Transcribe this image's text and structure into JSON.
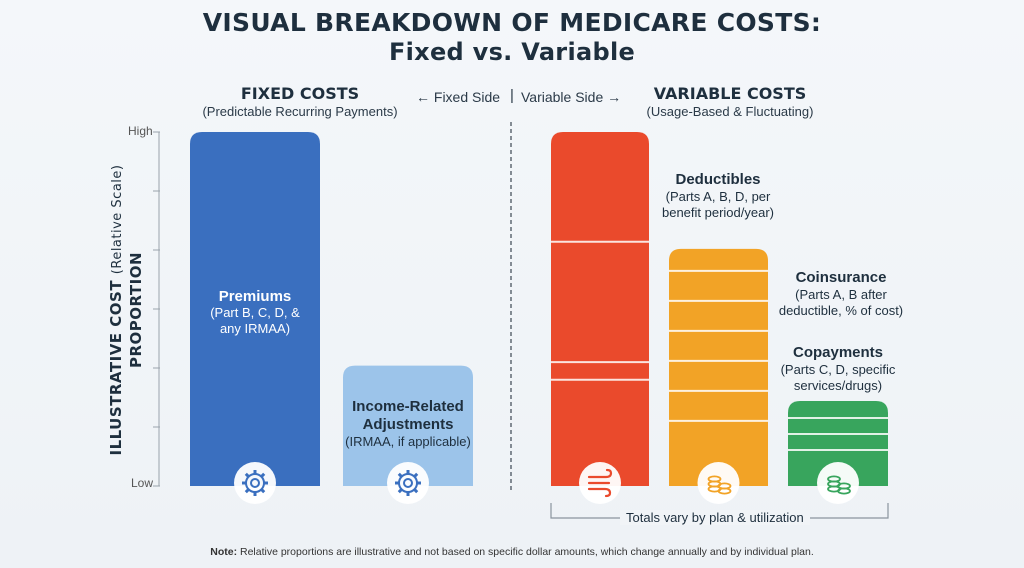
{
  "title_line1": "VISUAL BREAKDOWN OF MEDICARE COSTS:",
  "title_line2": "Fixed vs. Variable",
  "fixed": {
    "heading": "FIXED COSTS",
    "subheading": "(Predictable Recurring Payments)",
    "side_label": "← Fixed Side"
  },
  "variable": {
    "heading": "VARIABLE COSTS",
    "subheading": "(Usage-Based & Fluctuating)",
    "side_label": "Variable Side →"
  },
  "y_axis": {
    "label_line1": "ILLUSTRATIVE COST",
    "label_scale": "(Relative Scale)",
    "label_line2": "PROPORTION",
    "tick_high": "High",
    "tick_low": "Low"
  },
  "chart_data": {
    "type": "bar",
    "title": "VISUAL BREAKDOWN OF MEDICARE COSTS: Fixed vs. Variable",
    "ylabel": "ILLUSTRATIVE COST PROPORTION (Relative Scale)",
    "ylim": [
      0,
      1
    ],
    "grid": false,
    "categories": [
      "Premiums",
      "Income-Related Adjustments",
      "Deductibles",
      "Coinsurance",
      "Copayments"
    ],
    "values": [
      1.0,
      0.34,
      1.0,
      0.67,
      0.24
    ],
    "bars": [
      {
        "name": "Premiums",
        "desc_lines": [
          "(Part B, C, D, &",
          "any IRMAA)"
        ],
        "value": 1.0,
        "group": "fixed",
        "color": "#3a6fbf",
        "icon": "gear-icon"
      },
      {
        "name": "Income-Related Adjustments",
        "name_lines": [
          "Income-Related",
          "Adjustments"
        ],
        "desc_lines": [
          "(IRMAA, if applicable)"
        ],
        "value": 0.34,
        "group": "fixed",
        "color": "#9cc4ea",
        "icon": "gear-icon"
      },
      {
        "name": "Deductibles",
        "desc_lines": [
          "(Parts A, B, D, per",
          "benefit period/year)"
        ],
        "value": 1.0,
        "group": "variable",
        "color": "#ea4a2c",
        "icon": "wind-icon"
      },
      {
        "name": "Coinsurance",
        "desc_lines": [
          "(Parts A, B after",
          "deductible, % of cost)"
        ],
        "value": 0.67,
        "group": "variable",
        "color": "#f2a326",
        "icon": "coins-icon"
      },
      {
        "name": "Copayments",
        "desc_lines": [
          "(Parts C, D, specific",
          "services/drugs)"
        ],
        "value": 0.24,
        "group": "variable",
        "color": "#38a55d",
        "icon": "coins-icon"
      }
    ]
  },
  "totals_note": "Totals vary by plan & utilization",
  "footnote_bold": "Note:",
  "footnote_text": " Relative proportions are illustrative and not based on specific dollar amounts, which change annually and by individual plan.",
  "colors": {
    "premiums": "#3a6fbf",
    "adjustments": "#9cc4ea",
    "deductibles": "#ea4a2c",
    "coinsurance": "#f2a326",
    "copayments": "#38a55d"
  }
}
